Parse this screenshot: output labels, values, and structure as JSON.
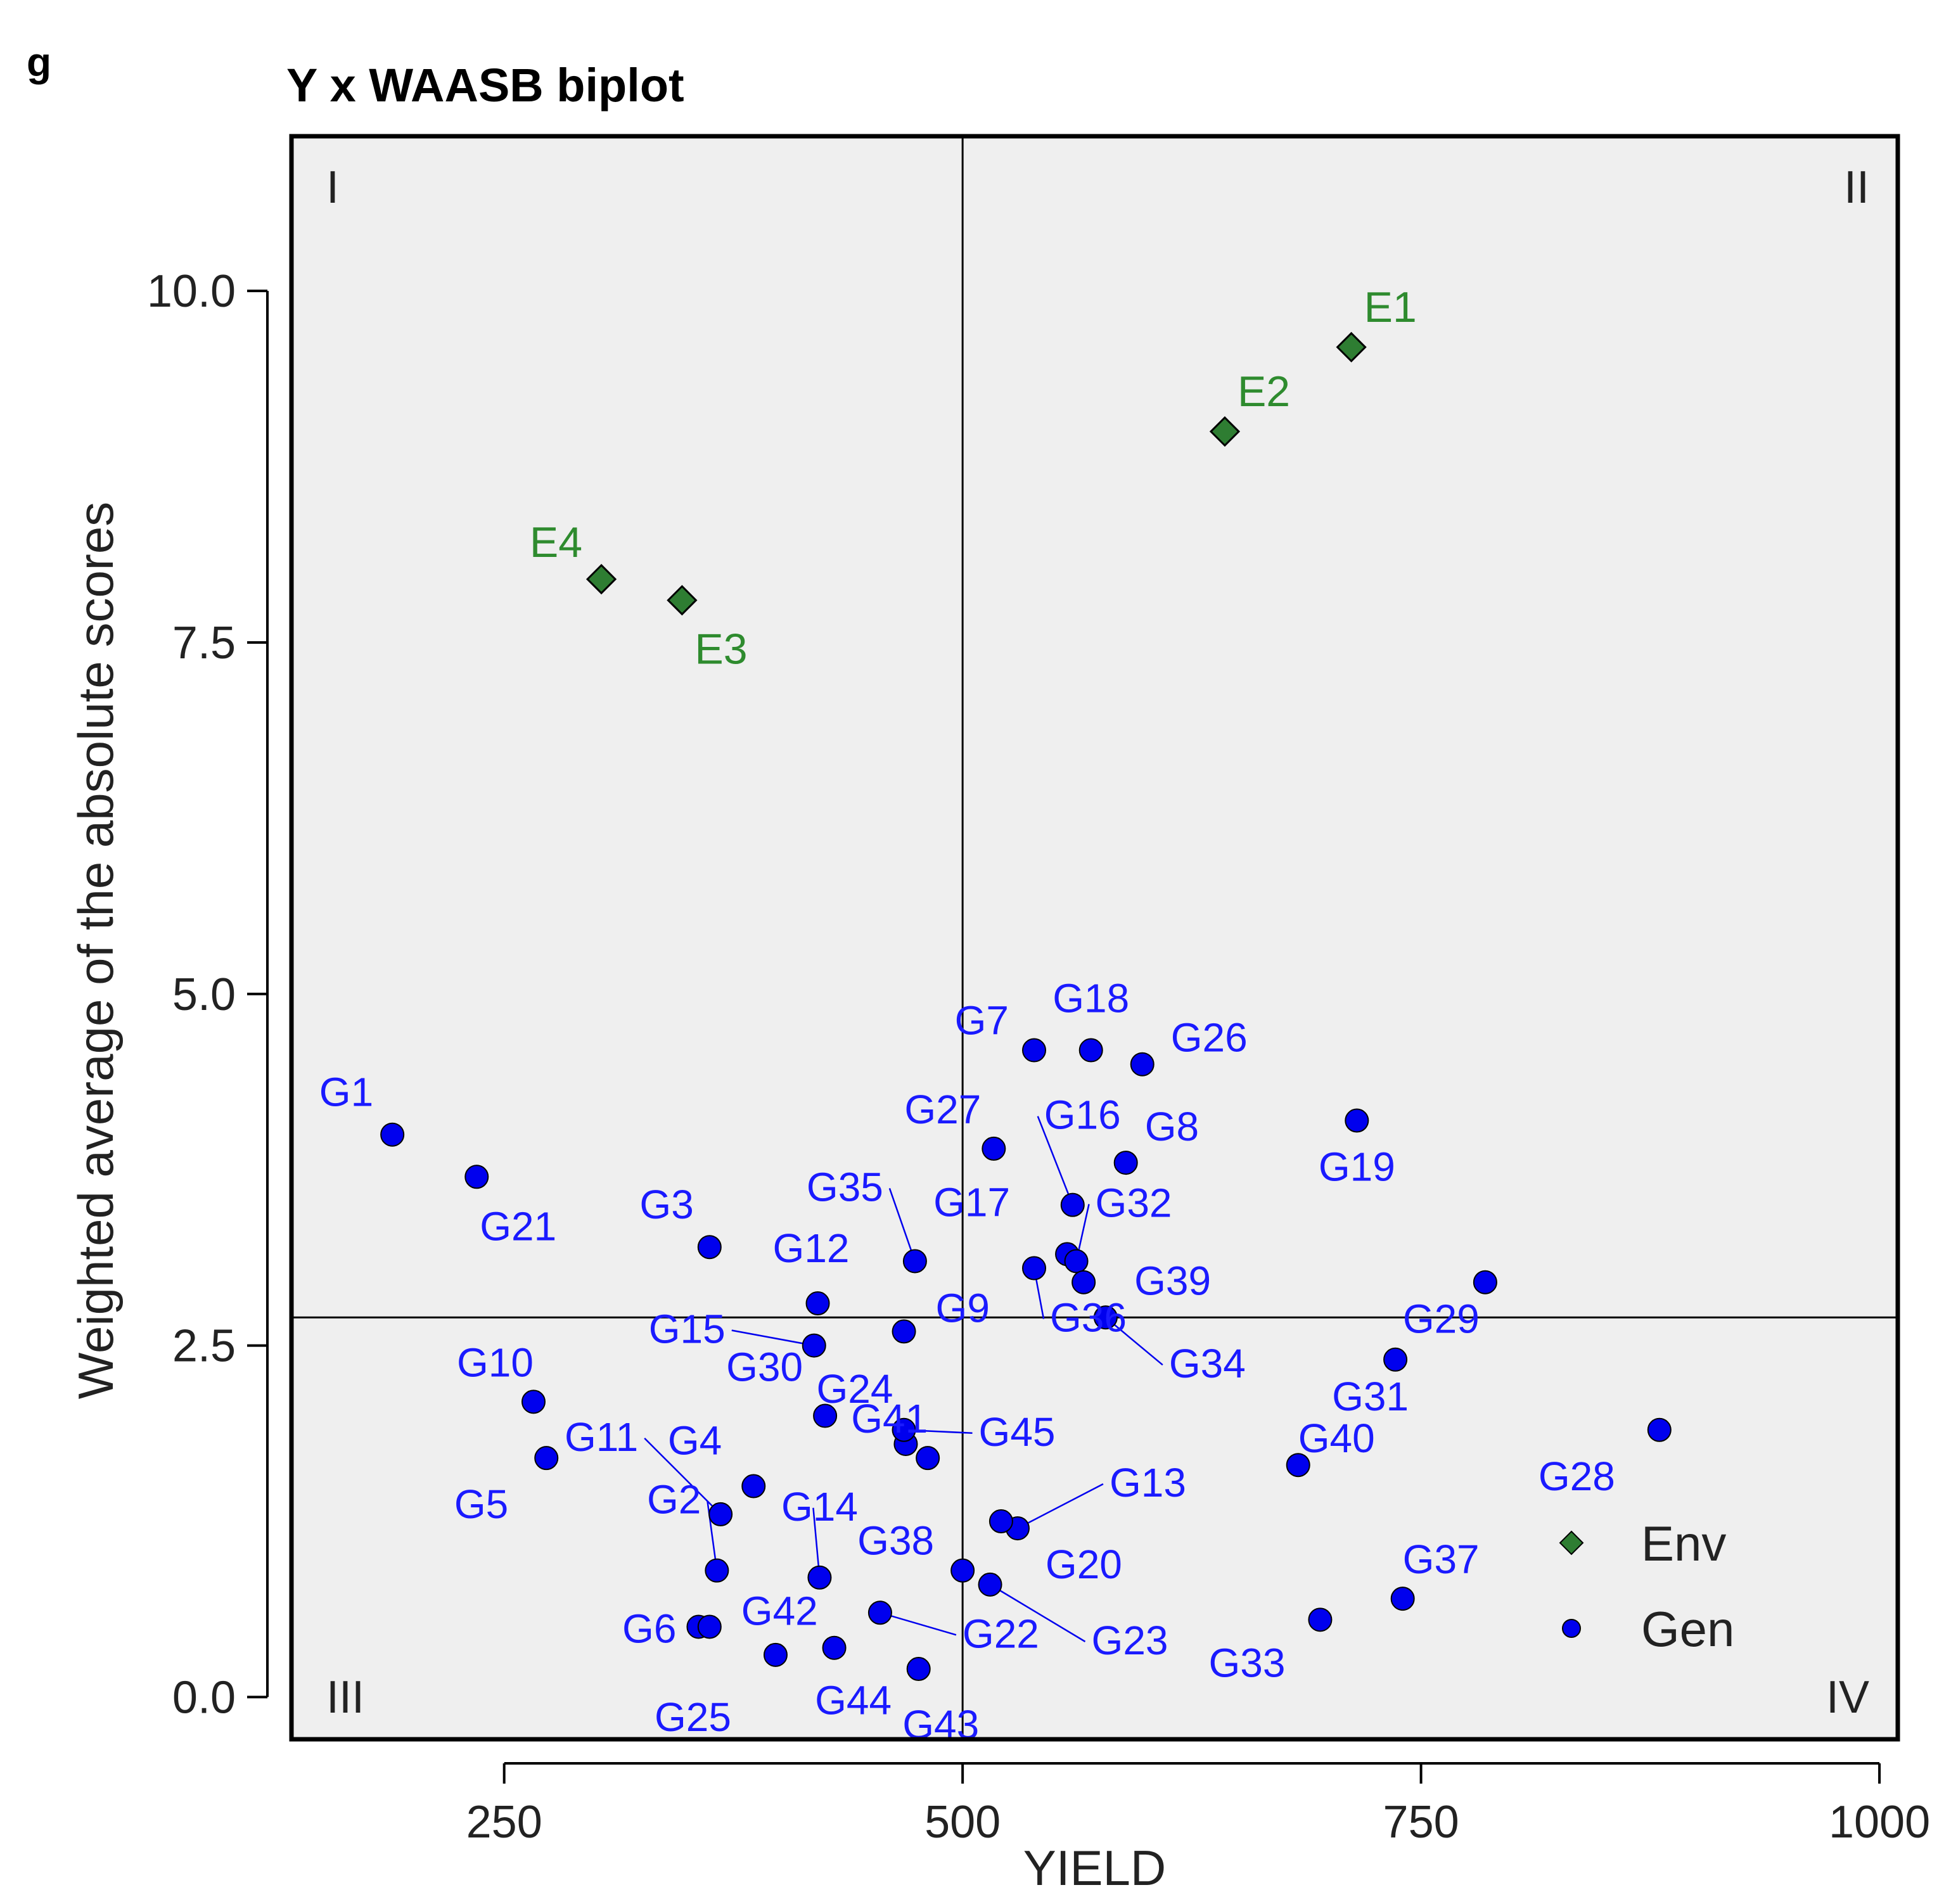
{
  "panel_tag": "g",
  "chart_data": {
    "type": "scatter",
    "title": "Y x WAASB biplot",
    "xlabel": "YIELD",
    "ylabel": "Weighted average of the absolute scores",
    "xlim": [
      134,
      1010
    ],
    "ylim": [
      -0.3,
      11.1
    ],
    "x_ticks": [
      250,
      500,
      750,
      1000
    ],
    "x_tick_labels": [
      "250",
      "500",
      "750",
      "1000"
    ],
    "y_ticks": [
      0.0,
      2.5,
      5.0,
      7.5,
      10.0
    ],
    "y_tick_labels": [
      "0.0",
      "2.5",
      "5.0",
      "7.5",
      "10.0"
    ],
    "reference_lines": {
      "x_mean": 500,
      "y_mean": 2.7
    },
    "quadrant_labels": {
      "top_left": "I",
      "top_right": "II",
      "bottom_left": "III",
      "bottom_right": "IV"
    },
    "colors": {
      "env": "#2e7d32",
      "gen": "#0000ee",
      "env_label": "#2e8b2e",
      "gen_label": "#1a1aff",
      "panel_bg": "#efefef"
    },
    "legend": {
      "position": "bottom-right",
      "entries": [
        {
          "label": "Env",
          "marker": "diamond"
        },
        {
          "label": "Gen",
          "marker": "circle"
        }
      ]
    },
    "series": [
      {
        "name": "Env",
        "marker": "diamond",
        "points": [
          {
            "label": "E1",
            "x": 712,
            "y": 9.6
          },
          {
            "label": "E2",
            "x": 643,
            "y": 9.0
          },
          {
            "label": "E3",
            "x": 347,
            "y": 7.8
          },
          {
            "label": "E4",
            "x": 303,
            "y": 7.95
          }
        ]
      },
      {
        "name": "Gen",
        "marker": "circle",
        "points": [
          {
            "label": "G1",
            "x": 189,
            "y": 4.0
          },
          {
            "label": "G2",
            "x": 366,
            "y": 0.9
          },
          {
            "label": "G3",
            "x": 362,
            "y": 3.2
          },
          {
            "label": "G4",
            "x": 386,
            "y": 1.5
          },
          {
            "label": "G5",
            "x": 273,
            "y": 1.7
          },
          {
            "label": "G6",
            "x": 356,
            "y": 0.5
          },
          {
            "label": "G7",
            "x": 539,
            "y": 4.6
          },
          {
            "label": "G8",
            "x": 589,
            "y": 3.8
          },
          {
            "label": "G9",
            "x": 468,
            "y": 2.6
          },
          {
            "label": "G10",
            "x": 266,
            "y": 2.1
          },
          {
            "label": "G11",
            "x": 368,
            "y": 1.3
          },
          {
            "label": "G12",
            "x": 421,
            "y": 2.8
          },
          {
            "label": "G13",
            "x": 530,
            "y": 1.2
          },
          {
            "label": "G14",
            "x": 422,
            "y": 0.85
          },
          {
            "label": "G15",
            "x": 419,
            "y": 2.5
          },
          {
            "label": "G16",
            "x": 560,
            "y": 3.5
          },
          {
            "label": "G17",
            "x": 557,
            "y": 3.15
          },
          {
            "label": "G18",
            "x": 570,
            "y": 4.6
          },
          {
            "label": "G19",
            "x": 715,
            "y": 4.1
          },
          {
            "label": "G20",
            "x": 521,
            "y": 1.25
          },
          {
            "label": "G21",
            "x": 235,
            "y": 3.7
          },
          {
            "label": "G22",
            "x": 455,
            "y": 0.6
          },
          {
            "label": "G23",
            "x": 515,
            "y": 0.8
          },
          {
            "label": "G24",
            "x": 469,
            "y": 1.8
          },
          {
            "label": "G25",
            "x": 398,
            "y": 0.3
          },
          {
            "label": "G26",
            "x": 598,
            "y": 4.5
          },
          {
            "label": "G27",
            "x": 517,
            "y": 3.9
          },
          {
            "label": "G28",
            "x": 880,
            "y": 1.9
          },
          {
            "label": "G29",
            "x": 785,
            "y": 2.95
          },
          {
            "label": "G30",
            "x": 425,
            "y": 2.0
          },
          {
            "label": "G31",
            "x": 736,
            "y": 2.4
          },
          {
            "label": "G32",
            "x": 562,
            "y": 3.1
          },
          {
            "label": "G33",
            "x": 695,
            "y": 0.55
          },
          {
            "label": "G34",
            "x": 578,
            "y": 2.7
          },
          {
            "label": "G35",
            "x": 474,
            "y": 3.1
          },
          {
            "label": "G36",
            "x": 539,
            "y": 3.05
          },
          {
            "label": "G37",
            "x": 740,
            "y": 0.7
          },
          {
            "label": "G38",
            "x": 500,
            "y": 0.9
          },
          {
            "label": "G39",
            "x": 566,
            "y": 2.95
          },
          {
            "label": "G40",
            "x": 683,
            "y": 1.65
          },
          {
            "label": "G41",
            "x": 481,
            "y": 1.7
          },
          {
            "label": "G42",
            "x": 362,
            "y": 0.5
          },
          {
            "label": "G43",
            "x": 476,
            "y": 0.2
          },
          {
            "label": "G44",
            "x": 430,
            "y": 0.35
          },
          {
            "label": "G45",
            "x": 468,
            "y": 1.9
          }
        ]
      }
    ]
  }
}
